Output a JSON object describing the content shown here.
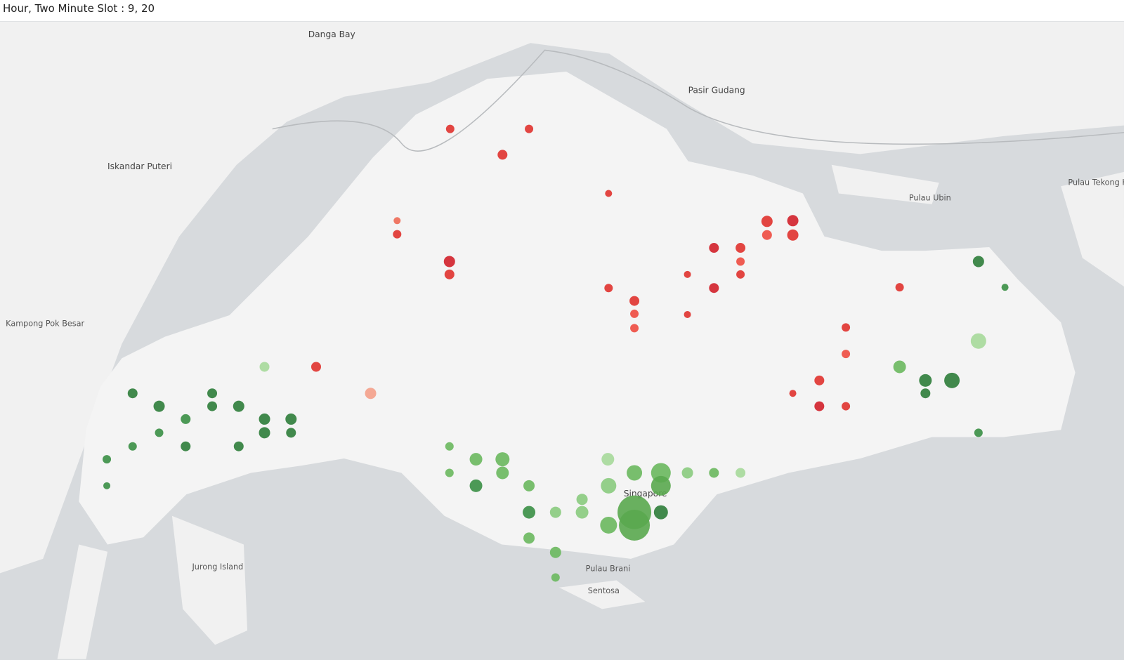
{
  "title": "Hour, Two Minute Slot : 9, 20",
  "places": [
    "Danga Bay",
    "Pasir Gudang",
    "Iskandar Puteri",
    "Pulau Ubin",
    "Jurong Island",
    "Singapore",
    "Sentosa",
    "Pulau Brani",
    "Kampong Pok Besar",
    "Pulau Tekong Kechil"
  ],
  "points": [
    {
      "lon": 103.7644,
      "lat": 1.446,
      "size": 6,
      "color": "#e0322e"
    },
    {
      "lon": 103.7863,
      "lat": 1.4352,
      "size": 7,
      "color": "#e0322e"
    },
    {
      "lon": 103.7974,
      "lat": 1.446,
      "size": 6,
      "color": "#e0322e"
    },
    {
      "lon": 103.8307,
      "lat": 1.419,
      "size": 5,
      "color": "#e0322e"
    },
    {
      "lon": 103.7641,
      "lat": 1.3905,
      "size": 8,
      "color": "#d1202a"
    },
    {
      "lon": 103.7641,
      "lat": 1.3851,
      "size": 7,
      "color": "#e0322e"
    },
    {
      "lon": 103.7422,
      "lat": 1.4019,
      "size": 6,
      "color": "#e0322e"
    },
    {
      "lon": 103.7422,
      "lat": 1.4076,
      "size": 5,
      "color": "#ee6a55"
    },
    {
      "lon": 103.897,
      "lat": 1.4073,
      "size": 8,
      "color": "#e0322e"
    },
    {
      "lon": 103.9078,
      "lat": 1.4076,
      "size": 8,
      "color": "#d1202a"
    },
    {
      "lon": 103.897,
      "lat": 1.4016,
      "size": 7,
      "color": "#ee4b40"
    },
    {
      "lon": 103.9078,
      "lat": 1.4016,
      "size": 8,
      "color": "#e0322e"
    },
    {
      "lon": 103.8859,
      "lat": 1.3962,
      "size": 7,
      "color": "#e0322e"
    },
    {
      "lon": 103.8859,
      "lat": 1.3905,
      "size": 6,
      "color": "#ee4b40"
    },
    {
      "lon": 103.8748,
      "lat": 1.3962,
      "size": 7,
      "color": "#d1202a"
    },
    {
      "lon": 103.8748,
      "lat": 1.3794,
      "size": 7,
      "color": "#d1202a"
    },
    {
      "lon": 103.8859,
      "lat": 1.3851,
      "size": 6,
      "color": "#e0322e"
    },
    {
      "lon": 103.8415,
      "lat": 1.374,
      "size": 7,
      "color": "#e0322e"
    },
    {
      "lon": 103.8415,
      "lat": 1.3686,
      "size": 6,
      "color": "#ee4b40"
    },
    {
      "lon": 103.8415,
      "lat": 1.3626,
      "size": 6,
      "color": "#ee4b40"
    },
    {
      "lon": 103.8307,
      "lat": 1.3794,
      "size": 6,
      "color": "#e0322e"
    },
    {
      "lon": 103.93,
      "lat": 1.3629,
      "size": 6,
      "color": "#e0322e"
    },
    {
      "lon": 103.93,
      "lat": 1.3518,
      "size": 6,
      "color": "#ee4b40"
    },
    {
      "lon": 103.9189,
      "lat": 1.3407,
      "size": 7,
      "color": "#e0322e"
    },
    {
      "lon": 103.9189,
      "lat": 1.3299,
      "size": 7,
      "color": "#d1202a"
    },
    {
      "lon": 103.93,
      "lat": 1.3299,
      "size": 6,
      "color": "#e0322e"
    },
    {
      "lon": 103.9078,
      "lat": 1.3353,
      "size": 5,
      "color": "#e0322e"
    },
    {
      "lon": 103.9525,
      "lat": 1.3797,
      "size": 6,
      "color": "#e0322e"
    },
    {
      "lon": 103.7083,
      "lat": 1.3464,
      "size": 7,
      "color": "#e0322e"
    },
    {
      "lon": 103.7311,
      "lat": 1.3353,
      "size": 8,
      "color": "#f4a08a"
    },
    {
      "lon": 103.8637,
      "lat": 1.3851,
      "size": 5,
      "color": "#e0322e"
    },
    {
      "lon": 103.8637,
      "lat": 1.3683,
      "size": 5,
      "color": "#e0322e"
    },
    {
      "lon": 103.6315,
      "lat": 1.3353,
      "size": 7,
      "color": "#2e7d3a"
    },
    {
      "lon": 103.6426,
      "lat": 1.3299,
      "size": 8,
      "color": "#2e7d3a"
    },
    {
      "lon": 103.6537,
      "lat": 1.3245,
      "size": 7,
      "color": "#3a8f45"
    },
    {
      "lon": 103.6648,
      "lat": 1.3299,
      "size": 7,
      "color": "#2e7d3a"
    },
    {
      "lon": 103.6759,
      "lat": 1.3299,
      "size": 8,
      "color": "#2e7d3a"
    },
    {
      "lon": 103.6867,
      "lat": 1.3245,
      "size": 8,
      "color": "#2e7d3a"
    },
    {
      "lon": 103.6867,
      "lat": 1.3188,
      "size": 8,
      "color": "#2e7d3a"
    },
    {
      "lon": 103.6978,
      "lat": 1.3245,
      "size": 8,
      "color": "#2e7d3a"
    },
    {
      "lon": 103.6978,
      "lat": 1.3188,
      "size": 7,
      "color": "#2e7d3a"
    },
    {
      "lon": 103.6426,
      "lat": 1.3188,
      "size": 6,
      "color": "#3a8f45"
    },
    {
      "lon": 103.6537,
      "lat": 1.3131,
      "size": 7,
      "color": "#2e7d3a"
    },
    {
      "lon": 103.6759,
      "lat": 1.3131,
      "size": 7,
      "color": "#2e7d3a"
    },
    {
      "lon": 103.6315,
      "lat": 1.3131,
      "size": 6,
      "color": "#3a8f45"
    },
    {
      "lon": 103.6207,
      "lat": 1.3077,
      "size": 6,
      "color": "#3a8f45"
    },
    {
      "lon": 103.6207,
      "lat": 1.2966,
      "size": 5,
      "color": "#3a8f45"
    },
    {
      "lon": 103.6648,
      "lat": 1.3353,
      "size": 7,
      "color": "#2e7d3a"
    },
    {
      "lon": 103.6867,
      "lat": 1.3464,
      "size": 7,
      "color": "#a6d99a"
    },
    {
      "lon": 103.7752,
      "lat": 1.3077,
      "size": 9,
      "color": "#6ab85e"
    },
    {
      "lon": 103.7752,
      "lat": 1.2966,
      "size": 9,
      "color": "#3a8f45"
    },
    {
      "lon": 103.7863,
      "lat": 1.3077,
      "size": 10,
      "color": "#6ab85e"
    },
    {
      "lon": 103.7863,
      "lat": 1.302,
      "size": 9,
      "color": "#6ab85e"
    },
    {
      "lon": 103.7974,
      "lat": 1.2966,
      "size": 8,
      "color": "#6ab85e"
    },
    {
      "lon": 103.7974,
      "lat": 1.2855,
      "size": 9,
      "color": "#3a8f45"
    },
    {
      "lon": 103.7974,
      "lat": 1.2747,
      "size": 8,
      "color": "#6ab85e"
    },
    {
      "lon": 103.8085,
      "lat": 1.2855,
      "size": 8,
      "color": "#8acb7e"
    },
    {
      "lon": 103.8085,
      "lat": 1.2687,
      "size": 8,
      "color": "#6ab85e"
    },
    {
      "lon": 103.8196,
      "lat": 1.2855,
      "size": 9,
      "color": "#8acb7e"
    },
    {
      "lon": 103.8307,
      "lat": 1.2966,
      "size": 11,
      "color": "#8acb7e"
    },
    {
      "lon": 103.8307,
      "lat": 1.2801,
      "size": 12,
      "color": "#6ab85e"
    },
    {
      "lon": 103.8415,
      "lat": 1.2855,
      "size": 24,
      "color": "#5aa94f"
    },
    {
      "lon": 103.8415,
      "lat": 1.2801,
      "size": 22,
      "color": "#5aa94f"
    },
    {
      "lon": 103.8526,
      "lat": 1.302,
      "size": 14,
      "color": "#6ab85e"
    },
    {
      "lon": 103.8526,
      "lat": 1.2966,
      "size": 14,
      "color": "#5aa94f"
    },
    {
      "lon": 103.8526,
      "lat": 1.2855,
      "size": 10,
      "color": "#2e7d3a"
    },
    {
      "lon": 103.8637,
      "lat": 1.302,
      "size": 8,
      "color": "#8acb7e"
    },
    {
      "lon": 103.8748,
      "lat": 1.302,
      "size": 7,
      "color": "#6ab85e"
    },
    {
      "lon": 103.8859,
      "lat": 1.302,
      "size": 7,
      "color": "#a6d99a"
    },
    {
      "lon": 103.8304,
      "lat": 1.3077,
      "size": 9,
      "color": "#a6d99a"
    },
    {
      "lon": 103.8415,
      "lat": 1.302,
      "size": 11,
      "color": "#6ab85e"
    },
    {
      "lon": 103.8196,
      "lat": 1.2909,
      "size": 8,
      "color": "#8acb7e"
    },
    {
      "lon": 103.8085,
      "lat": 1.2582,
      "size": 6,
      "color": "#6ab85e"
    },
    {
      "lon": 103.7641,
      "lat": 1.3131,
      "size": 6,
      "color": "#6ab85e"
    },
    {
      "lon": 103.7641,
      "lat": 1.302,
      "size": 6,
      "color": "#6ab85e"
    },
    {
      "lon": 103.9525,
      "lat": 1.3464,
      "size": 9,
      "color": "#6ab85e"
    },
    {
      "lon": 103.9633,
      "lat": 1.3407,
      "size": 9,
      "color": "#2e7d3a"
    },
    {
      "lon": 103.9633,
      "lat": 1.3353,
      "size": 7,
      "color": "#2e7d3a"
    },
    {
      "lon": 103.9744,
      "lat": 1.3407,
      "size": 11,
      "color": "#2e7d3a"
    },
    {
      "lon": 103.9855,
      "lat": 1.3905,
      "size": 8,
      "color": "#2e7d3a"
    },
    {
      "lon": 103.9855,
      "lat": 1.3572,
      "size": 11,
      "color": "#a6d99a"
    },
    {
      "lon": 103.9855,
      "lat": 1.3188,
      "size": 6,
      "color": "#3a8f45"
    },
    {
      "lon": 103.9966,
      "lat": 1.3797,
      "size": 5,
      "color": "#3a8f45"
    }
  ]
}
